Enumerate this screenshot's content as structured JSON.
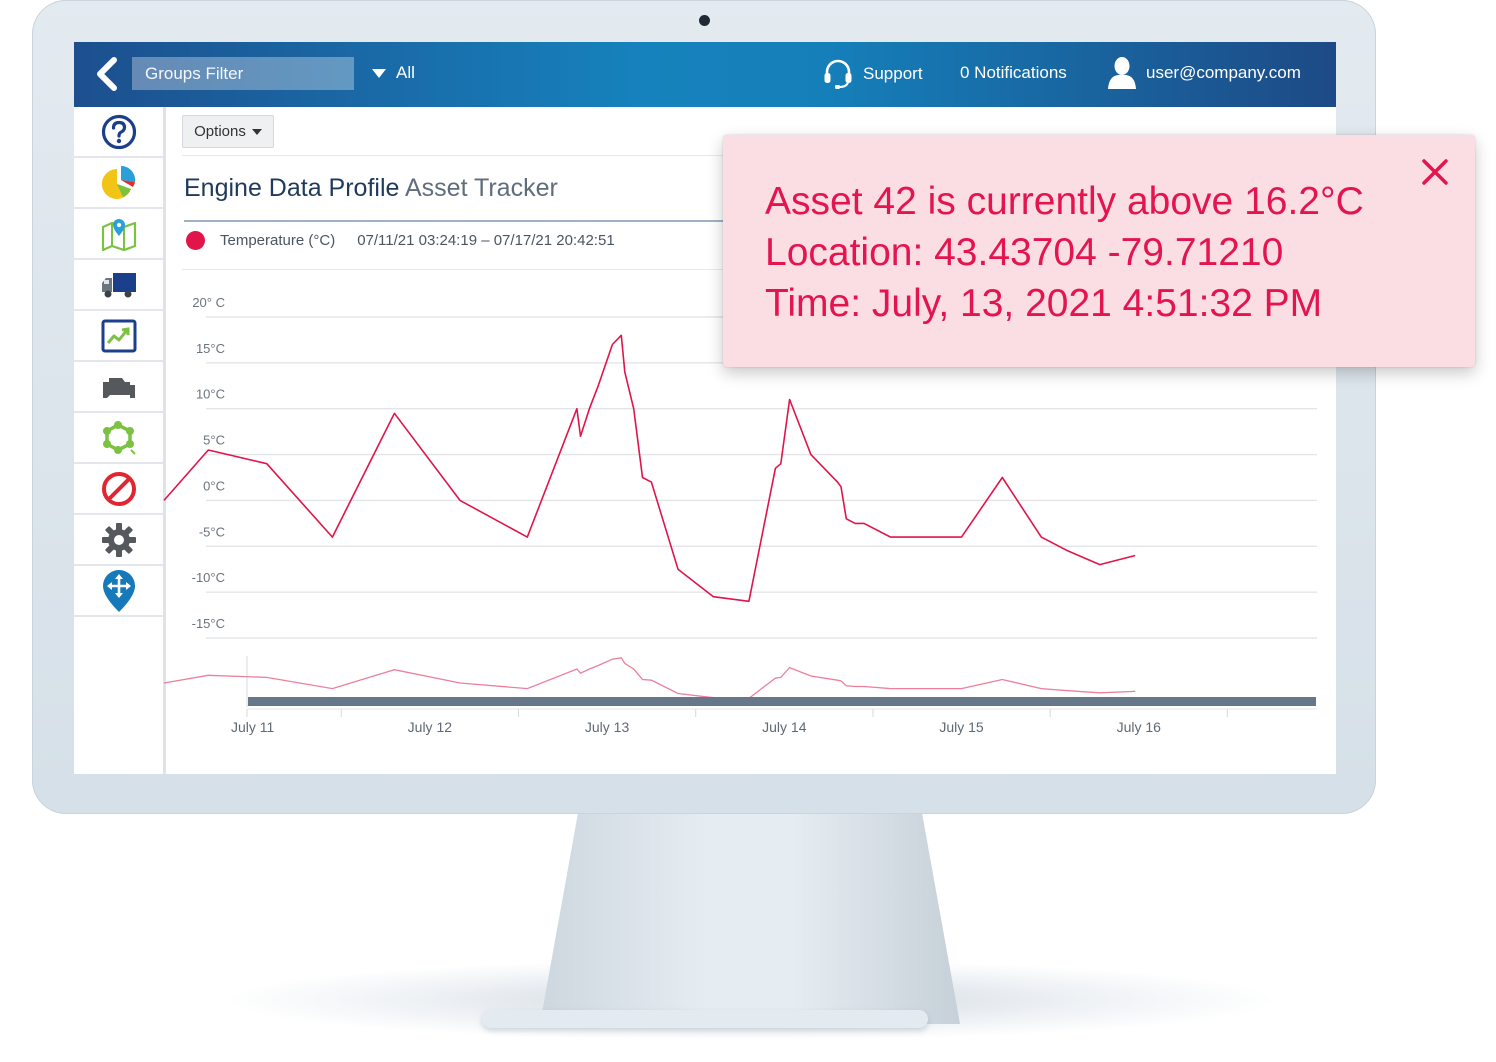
{
  "topbar": {
    "groups_filter_label": "Groups Filter",
    "filter_value": "All",
    "support_label": "Support",
    "notifications_label": "0 Notifications",
    "user_email": "user@company.com"
  },
  "sidebar": {
    "items": [
      {
        "icon": "help-icon"
      },
      {
        "icon": "pie-chart-icon"
      },
      {
        "icon": "map-pin-icon"
      },
      {
        "icon": "truck-icon"
      },
      {
        "icon": "trend-chart-icon"
      },
      {
        "icon": "engine-icon"
      },
      {
        "icon": "zone-icon"
      },
      {
        "icon": "no-entry-icon"
      },
      {
        "icon": "gear-icon"
      },
      {
        "icon": "move-pin-icon"
      }
    ]
  },
  "main": {
    "options_label": "Options",
    "title": "Engine Data Profile",
    "subtitle": "Asset Tracker",
    "legend_series": "Temperature (°C)",
    "date_range": "07/11/21 03:24:19 – 07/17/21 20:42:51"
  },
  "alert": {
    "line1": "Asset 42 is currently above 16.2°C",
    "line2": "Location: 43.43704   -79.71210",
    "line3": "Time: July, 13, 2021 4:51:32 PM"
  },
  "colors": {
    "series": "#e0154a",
    "alert_text": "#e4154e",
    "alert_bg": "#fbdde4",
    "topbar_start": "#1d4f8e",
    "topbar_mid": "#1682bd"
  },
  "chart_data": {
    "type": "line",
    "series": [
      {
        "name": "Temperature (°C)",
        "color": "#e0154a",
        "x": [
          10.5,
          10.75,
          11.08,
          11.45,
          11.8,
          12.17,
          12.55,
          12.83,
          12.85,
          12.9,
          12.95,
          13.03,
          13.08,
          13.1,
          13.15,
          13.2,
          13.25,
          13.4,
          13.6,
          13.8,
          13.95,
          13.98,
          14.03,
          14.15,
          14.3,
          14.32,
          14.35,
          14.4,
          14.45,
          14.6,
          15.0,
          15.23,
          15.45,
          15.6,
          15.78,
          15.98
        ],
        "y": [
          0,
          5.5,
          4,
          -4,
          9.5,
          0,
          -4,
          10,
          7,
          10,
          12.5,
          17,
          18,
          14,
          10,
          2.5,
          2,
          -7.5,
          -10.5,
          -11,
          3.5,
          4,
          11,
          5,
          2,
          1.5,
          -2,
          -2.5,
          -2.5,
          -4,
          -4,
          2.5,
          -4,
          -5.5,
          -7,
          -6
        ]
      }
    ],
    "y_tick_labels": [
      "20° C",
      "15°C",
      "10°C",
      "5°C",
      "0°C",
      "-5°C",
      "-10°C",
      "-15°C"
    ],
    "y_ticks": [
      20,
      15,
      10,
      5,
      0,
      -5,
      -10,
      -15
    ],
    "x_tick_labels": [
      "July 11",
      "July 12",
      "July 13",
      "July 14",
      "July 15",
      "July 16"
    ],
    "x_ticks": [
      11,
      12,
      13,
      14,
      15,
      16
    ],
    "ylim": [
      -15,
      20
    ],
    "xlim": [
      10.5,
      17
    ],
    "grid": true,
    "navigator": true
  }
}
